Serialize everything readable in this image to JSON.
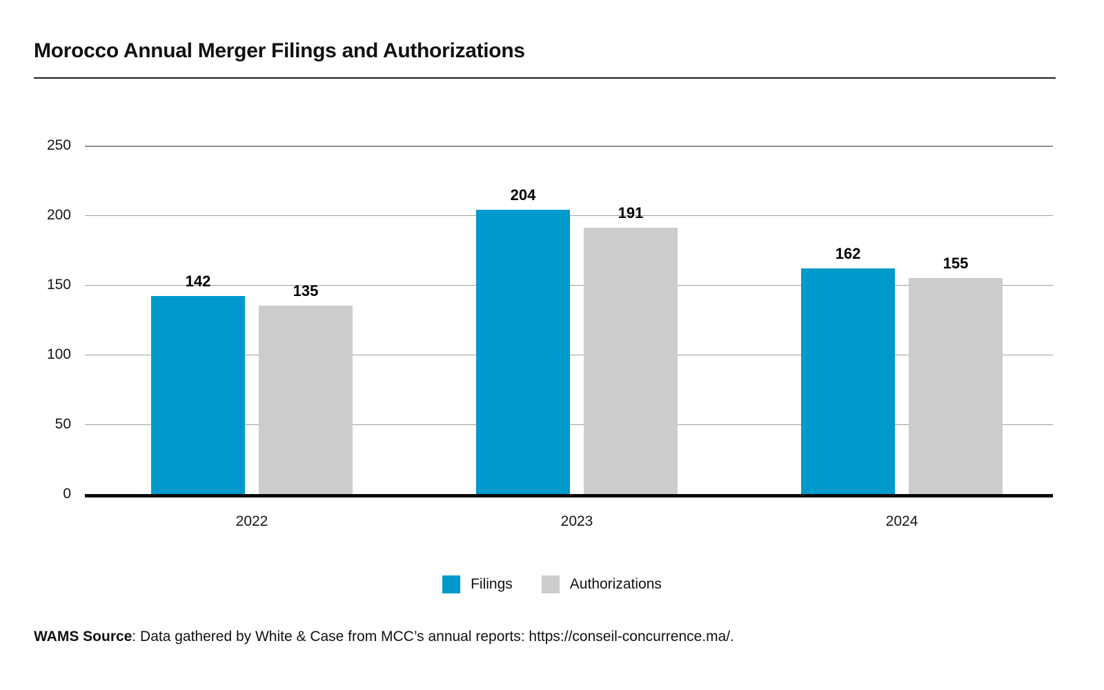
{
  "chart_data": {
    "type": "bar",
    "title": "Morocco Annual Merger Filings and Authorizations",
    "categories": [
      "2022",
      "2023",
      "2024"
    ],
    "series": [
      {
        "name": "Filings",
        "color": "#0099CC",
        "values": [
          142,
          204,
          162
        ]
      },
      {
        "name": "Authorizations",
        "color": "#CCCCCC",
        "values": [
          135,
          191,
          155
        ]
      }
    ],
    "xlabel": "",
    "ylabel": "",
    "ylim": [
      0,
      250
    ],
    "yticks": [
      0,
      50,
      100,
      150,
      200,
      250
    ],
    "grid": true,
    "legend_position": "bottom"
  },
  "colors": {
    "filings": "#0099CC",
    "authorizations": "#CCCCCC",
    "gridline": "#9E9E9E",
    "axis": "#0A0A0A",
    "text": "#111111"
  },
  "source": {
    "label": "WAMS Source",
    "text": ": Data gathered by White & Case from MCC’s annual reports: https://conseil-concurrence.ma/."
  }
}
